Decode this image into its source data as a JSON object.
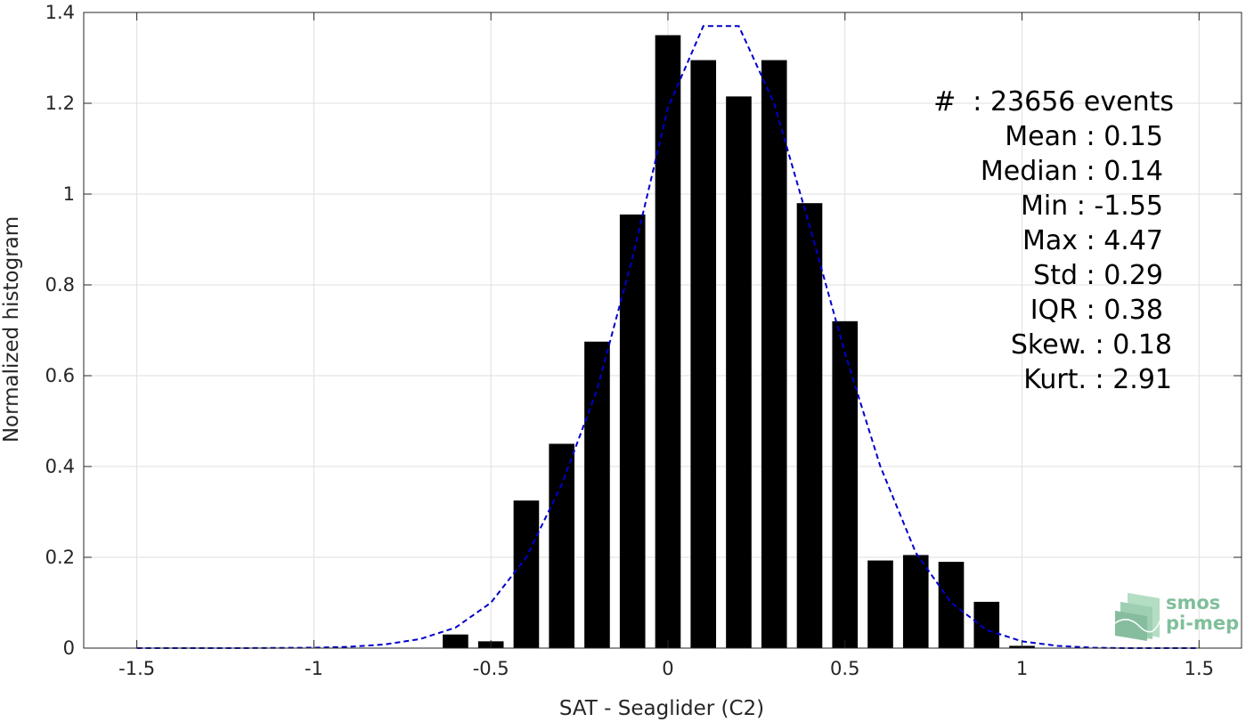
{
  "chart_data": {
    "type": "bar",
    "xlabel": "SAT - Seaglider (C2)",
    "ylabel": "Normalized histogram",
    "xlim": [
      -1.65,
      1.62
    ],
    "ylim": [
      0,
      1.4
    ],
    "xticks": [
      -1.5,
      -1,
      -0.5,
      0,
      0.5,
      1,
      1.5
    ],
    "xtick_labels": [
      "-1.5",
      "-1",
      "-0.5",
      "0",
      "0.5",
      "1",
      "1.5"
    ],
    "yticks": [
      0,
      0.2,
      0.4,
      0.6,
      0.8,
      1,
      1.2,
      1.4
    ],
    "ytick_labels": [
      "0",
      "0.2",
      "0.4",
      "0.6",
      "0.8",
      "1",
      "1.2",
      "1.4"
    ],
    "grid": true,
    "bar_color": "#000000",
    "bar_width": 0.072,
    "bars": [
      {
        "x": -0.6,
        "y": 0.03
      },
      {
        "x": -0.5,
        "y": 0.015
      },
      {
        "x": -0.4,
        "y": 0.325
      },
      {
        "x": -0.3,
        "y": 0.45
      },
      {
        "x": -0.2,
        "y": 0.675
      },
      {
        "x": -0.1,
        "y": 0.955
      },
      {
        "x": 0.0,
        "y": 1.35
      },
      {
        "x": 0.1,
        "y": 1.295
      },
      {
        "x": 0.2,
        "y": 1.215
      },
      {
        "x": 0.3,
        "y": 1.295
      },
      {
        "x": 0.4,
        "y": 0.98
      },
      {
        "x": 0.5,
        "y": 0.72
      },
      {
        "x": 0.6,
        "y": 0.193
      },
      {
        "x": 0.7,
        "y": 0.205
      },
      {
        "x": 0.8,
        "y": 0.19
      },
      {
        "x": 0.9,
        "y": 0.102
      },
      {
        "x": 1.0,
        "y": 0.005
      }
    ],
    "fit_curve": {
      "style": "dashed",
      "color": "#0000cc",
      "x": [
        -1.5,
        -1.2,
        -1.0,
        -0.9,
        -0.8,
        -0.7,
        -0.6,
        -0.5,
        -0.4,
        -0.3,
        -0.2,
        -0.1,
        0.0,
        0.1,
        0.2,
        0.3,
        0.4,
        0.5,
        0.6,
        0.7,
        0.8,
        0.9,
        1.0,
        1.1,
        1.2,
        1.3,
        1.5
      ],
      "y": [
        0.0,
        0.0,
        0.001,
        0.003,
        0.008,
        0.02,
        0.045,
        0.1,
        0.2,
        0.36,
        0.57,
        0.86,
        1.19,
        1.37,
        1.37,
        1.2,
        0.93,
        0.65,
        0.4,
        0.21,
        0.1,
        0.04,
        0.015,
        0.005,
        0.001,
        0.0,
        0.0
      ]
    },
    "stats_annotation": [
      "#  : 23656 events",
      "Mean : 0.15",
      "Median : 0.14",
      "Min : -1.55",
      "Max : 4.47",
      "Std : 0.29",
      "IQR : 0.38",
      "Skew. : 0.18",
      "Kurt. : 2.91"
    ]
  },
  "logo": {
    "line1": "smos",
    "line2": "pi-mep",
    "color": "#7fbf9a"
  }
}
